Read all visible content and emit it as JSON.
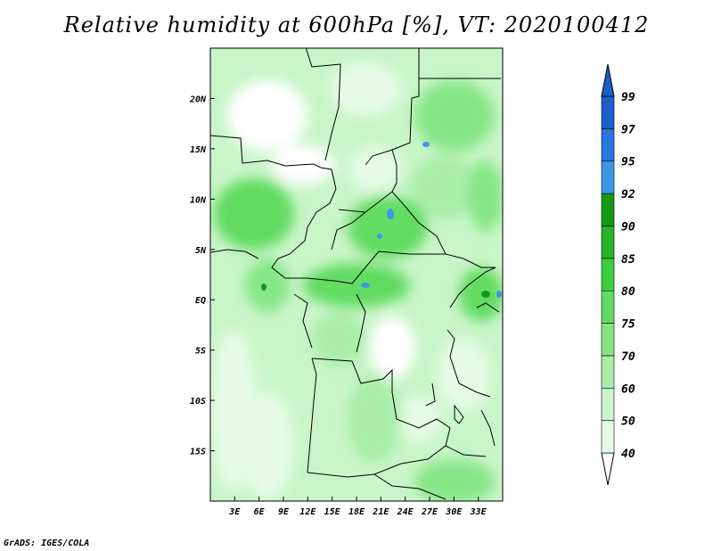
{
  "title": "Relative humidity at 600hPa [%], VT: 2020100412",
  "credit": "GrADS: IGES/COLA",
  "map": {
    "lon_range": [
      0,
      36
    ],
    "lat_range": [
      -20,
      25
    ],
    "lon_ticks": [
      "3E",
      "6E",
      "9E",
      "12E",
      "15E",
      "18E",
      "21E",
      "24E",
      "27E",
      "30E",
      "33E"
    ],
    "lat_ticks": [
      "20N",
      "15N",
      "10N",
      "5N",
      "EQ",
      "5S",
      "10S",
      "15S"
    ],
    "lon_tick_values": [
      3,
      6,
      9,
      12,
      15,
      18,
      21,
      24,
      27,
      30,
      33
    ],
    "lat_tick_values": [
      20,
      15,
      10,
      5,
      0,
      -5,
      -10,
      -15
    ]
  },
  "colorbar": {
    "levels": [
      "40",
      "50",
      "60",
      "70",
      "75",
      "80",
      "85",
      "90",
      "92",
      "95",
      "97",
      "99"
    ],
    "colors": [
      "#ffffff",
      "#e6fae6",
      "#c9f5c9",
      "#a8eea8",
      "#86e686",
      "#62dc62",
      "#3fce3f",
      "#28b428",
      "#159915",
      "#3c96e6",
      "#2877dc",
      "#1a5fc8"
    ]
  }
}
